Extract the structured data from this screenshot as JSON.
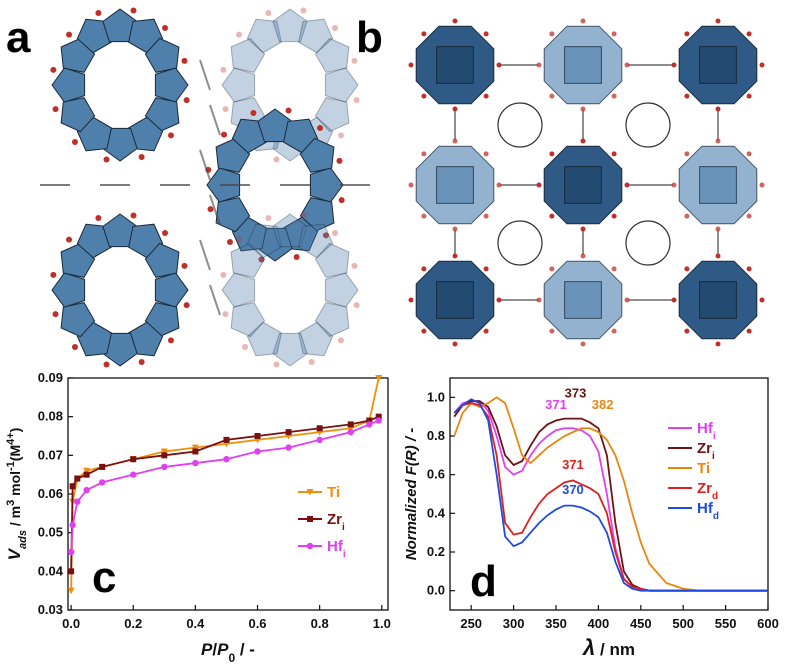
{
  "figure": {
    "panel_a": "a",
    "panel_b": "b"
  },
  "chart_data": [
    {
      "type": "line",
      "panel_label": "c",
      "xlabel": [
        "P",
        "/",
        "P",
        "0",
        " / -"
      ],
      "ylabel": [
        "V",
        "ads",
        " / m",
        "3",
        " mol",
        "-1",
        "(M",
        "4+",
        ")"
      ],
      "xlim": [
        -0.01,
        1.02
      ],
      "ylim": [
        0.03,
        0.09
      ],
      "xticks": [
        {
          "value": 0,
          "label": "0.0"
        },
        0.2,
        0.4,
        0.6,
        0.8,
        {
          "value": 1,
          "label": "1.0"
        }
      ],
      "yticks": [
        0.03,
        0.04,
        0.05,
        0.06,
        0.07,
        0.08,
        0.09
      ],
      "x": [
        0.0,
        0.005,
        0.02,
        0.05,
        0.1,
        0.2,
        0.3,
        0.4,
        0.5,
        0.6,
        0.7,
        0.8,
        0.9,
        0.96,
        0.99
      ],
      "series": [
        {
          "name": "Ti",
          "color": "#f0900a",
          "marker": "triangle-down",
          "values": [
            0.035,
            0.058,
            0.064,
            0.066,
            0.067,
            0.069,
            0.071,
            0.072,
            0.073,
            0.074,
            0.075,
            0.076,
            0.077,
            0.079,
            0.09
          ]
        },
        {
          "name": "Zr",
          "subscript": "i",
          "color": "#7a1010",
          "marker": "square",
          "values": [
            0.04,
            0.062,
            0.064,
            0.065,
            0.067,
            0.069,
            0.07,
            0.071,
            0.074,
            0.075,
            0.076,
            0.077,
            0.078,
            0.079,
            0.08
          ]
        },
        {
          "name": "Hf",
          "subscript": "i",
          "color": "#e040f0",
          "marker": "circle",
          "values": [
            0.045,
            0.052,
            0.058,
            0.061,
            0.063,
            0.065,
            0.067,
            0.068,
            0.069,
            0.071,
            0.072,
            0.074,
            0.076,
            0.078,
            0.079
          ]
        }
      ]
    },
    {
      "type": "line",
      "panel_label": "d",
      "xlabel": [
        "λ",
        " / nm"
      ],
      "ylabel": [
        "Normalized F(R) / -"
      ],
      "xlim": [
        225,
        600
      ],
      "ylim": [
        -0.1,
        1.1
      ],
      "xticks": [
        250,
        300,
        350,
        400,
        450,
        500,
        550,
        600
      ],
      "yticks": [
        {
          "value": 0,
          "label": "0.0"
        },
        0.2,
        0.4,
        0.6,
        0.8,
        {
          "value": 1,
          "label": "1.0"
        }
      ],
      "x": [
        230,
        240,
        250,
        260,
        270,
        280,
        290,
        300,
        310,
        320,
        330,
        340,
        350,
        360,
        370,
        380,
        390,
        400,
        410,
        420,
        430,
        440,
        450,
        460,
        480,
        500,
        520,
        550,
        600
      ],
      "series": [
        {
          "name": "Hf",
          "subscript": "i",
          "color": "#e040f0",
          "values": [
            0.92,
            0.97,
            0.98,
            0.98,
            0.93,
            0.8,
            0.64,
            0.6,
            0.62,
            0.7,
            0.76,
            0.8,
            0.83,
            0.84,
            0.84,
            0.83,
            0.8,
            0.72,
            0.5,
            0.22,
            0.06,
            0.02,
            0.01,
            0,
            0,
            0,
            0,
            0,
            0
          ]
        },
        {
          "name": "Zr",
          "subscript": "i",
          "color": "#6e1414",
          "values": [
            0.9,
            0.96,
            0.98,
            0.98,
            0.95,
            0.85,
            0.7,
            0.65,
            0.67,
            0.75,
            0.82,
            0.86,
            0.88,
            0.89,
            0.89,
            0.89,
            0.87,
            0.84,
            0.7,
            0.35,
            0.1,
            0.03,
            0.01,
            0,
            0,
            0,
            0,
            0,
            0
          ]
        },
        {
          "name": "Ti",
          "color": "#e8870f",
          "values": [
            0.8,
            0.92,
            0.97,
            0.95,
            0.97,
            1.0,
            0.97,
            0.84,
            0.7,
            0.66,
            0.7,
            0.74,
            0.77,
            0.8,
            0.82,
            0.84,
            0.84,
            0.82,
            0.78,
            0.7,
            0.57,
            0.4,
            0.25,
            0.14,
            0.04,
            0.01,
            0,
            0,
            0
          ]
        },
        {
          "name": "Zr",
          "subscript": "d",
          "color": "#e02020",
          "values": [
            0.92,
            0.96,
            0.97,
            0.96,
            0.9,
            0.7,
            0.35,
            0.29,
            0.3,
            0.38,
            0.45,
            0.5,
            0.53,
            0.56,
            0.57,
            0.55,
            0.53,
            0.5,
            0.4,
            0.2,
            0.06,
            0.02,
            0.01,
            0,
            0,
            0,
            0,
            0,
            0
          ]
        },
        {
          "name": "Hf",
          "subscript": "d",
          "color": "#1f4be0",
          "values": [
            0.92,
            0.96,
            0.99,
            0.97,
            0.88,
            0.6,
            0.28,
            0.23,
            0.25,
            0.3,
            0.35,
            0.39,
            0.42,
            0.44,
            0.44,
            0.43,
            0.41,
            0.38,
            0.3,
            0.15,
            0.04,
            0.01,
            0,
            0,
            0,
            0,
            0,
            0,
            0
          ]
        }
      ],
      "annotations": [
        {
          "text": "371",
          "color": "#e040f0"
        },
        {
          "text": "373",
          "color": "#6e1414"
        },
        {
          "text": "382",
          "color": "#e8870f"
        },
        {
          "text": "371",
          "color": "#e02020"
        },
        {
          "text": "370",
          "color": "#1f4be0"
        }
      ]
    }
  ]
}
